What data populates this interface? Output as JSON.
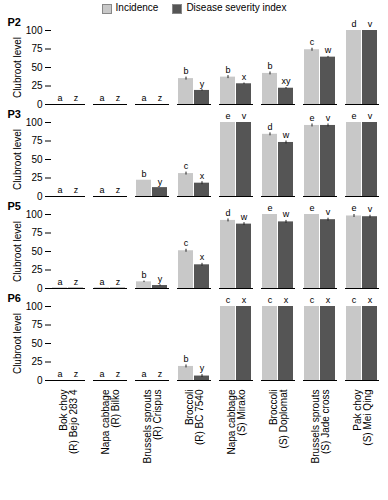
{
  "chart_data": [
    {
      "type": "bar",
      "title": "P2",
      "y_label": "Clubroot level",
      "categories": [
        "Bok choy",
        "Napa cabbage",
        "Brussels sprouts",
        "Broccoli",
        "Napa cabbage",
        "Broccoli",
        "Brussels sprouts",
        "Pak choy"
      ],
      "cultivars": [
        "(R) Bejo 283 4",
        "(R) Bilko",
        "(R) Crispus",
        "(R) BC 7540",
        "(S) Mirako",
        "(S) Doplomat",
        "(S) Jade cross",
        "(S) Mei Qing"
      ],
      "series": [
        {
          "name": "Incidence",
          "color": "#c8c8c8",
          "values": [
            0,
            0,
            0,
            35,
            37,
            42,
            74,
            100
          ],
          "errors": [
            0,
            0,
            0,
            2,
            2,
            2,
            2,
            0
          ],
          "letters": [
            "a",
            "a",
            "a",
            "b",
            "b",
            "b",
            "c",
            "d"
          ]
        },
        {
          "name": "Disease severity index",
          "color": "#555555",
          "values": [
            0,
            0,
            0,
            19,
            28,
            22,
            64,
            100
          ],
          "errors": [
            0,
            0,
            0,
            1,
            1,
            1,
            1,
            0
          ],
          "letters": [
            "z",
            "z",
            "z",
            "y",
            "x",
            "xy",
            "w",
            "v"
          ]
        }
      ],
      "ylim": [
        0,
        100
      ],
      "yticks": [
        0,
        25,
        50,
        75,
        100
      ],
      "legend": "top"
    },
    {
      "type": "bar",
      "title": "P3",
      "y_label": "Clubroot level",
      "categories": [
        "Bok choy",
        "Napa cabbage",
        "Brussels sprouts",
        "Broccoli",
        "Napa cabbage",
        "Broccoli",
        "Brussels sprouts",
        "Pak choy"
      ],
      "cultivars": [
        "(R) Bejo 283 4",
        "(R) Bilko",
        "(R) Crispus",
        "(R) BC 7540",
        "(S) Mirako",
        "(S) Doplomat",
        "(S) Jade cross",
        "(S) Mei Qing"
      ],
      "series": [
        {
          "name": "Incidence",
          "color": "#c8c8c8",
          "values": [
            0,
            0,
            22,
            31,
            100,
            84,
            96,
            100
          ],
          "errors": [
            0,
            0,
            0,
            2,
            0,
            2,
            2,
            0
          ],
          "letters": [
            "a",
            "a",
            "b",
            "c",
            "e",
            "d",
            "e",
            "e"
          ]
        },
        {
          "name": "Disease severity index",
          "color": "#555555",
          "values": [
            0,
            0,
            12,
            18,
            100,
            73,
            96,
            100
          ],
          "errors": [
            0,
            0,
            0,
            2,
            0,
            2,
            2,
            0
          ],
          "letters": [
            "z",
            "z",
            "y",
            "x",
            "v",
            "w",
            "v",
            "v"
          ]
        }
      ],
      "ylim": [
        0,
        100
      ],
      "yticks": [
        0,
        25,
        50,
        75,
        100
      ]
    },
    {
      "type": "bar",
      "title": "P5",
      "y_label": "Clubroot level",
      "categories": [
        "Bok choy",
        "Napa cabbage",
        "Brussels sprouts",
        "Broccoli",
        "Napa cabbage",
        "Broccoli",
        "Brussels sprouts",
        "Pak choy"
      ],
      "cultivars": [
        "(R) Bejo 283 4",
        "(R) Bilko",
        "(R) Crispus",
        "(R) BC 7540",
        "(S) Mirako",
        "(S) Doplomat",
        "(S) Jade cross",
        "(S) Mei Qing"
      ],
      "series": [
        {
          "name": "Incidence",
          "color": "#c8c8c8",
          "values": [
            1,
            1,
            9,
            51,
            92,
            100,
            100,
            98
          ],
          "errors": [
            0,
            0,
            1,
            2,
            2,
            0,
            0,
            2
          ],
          "letters": [
            "a",
            "a",
            "b",
            "c",
            "d",
            "e",
            "e",
            "e"
          ]
        },
        {
          "name": "Disease severity index",
          "color": "#555555",
          "values": [
            0.5,
            0.5,
            4,
            32,
            87,
            90,
            93,
            97
          ],
          "errors": [
            0,
            0,
            1,
            2,
            2,
            2,
            2,
            2
          ],
          "letters": [
            "z",
            "z",
            "y",
            "x",
            "w",
            "w",
            "v",
            "v"
          ]
        }
      ],
      "ylim": [
        0,
        100
      ],
      "yticks": [
        0,
        25,
        50,
        75,
        100
      ]
    },
    {
      "type": "bar",
      "title": "P6",
      "y_label": "Clubroot level",
      "categories": [
        "Bok choy",
        "Napa cabbage",
        "Brussels sprouts",
        "Broccoli",
        "Napa cabbage",
        "Broccoli",
        "Brussels sprouts",
        "Pak choy"
      ],
      "cultivars": [
        "(R) Bejo 283 4",
        "(R) Bilko",
        "(R) Crispus",
        "(R) BC 7540",
        "(S) Mirako",
        "(S) Doplomat",
        "(S) Jade cross",
        "(S) Mei Qing"
      ],
      "series": [
        {
          "name": "Incidence",
          "color": "#c8c8c8",
          "values": [
            0,
            0,
            0,
            19,
            100,
            100,
            100,
            100
          ],
          "errors": [
            0,
            0,
            0,
            2,
            0,
            0,
            0,
            0
          ],
          "letters": [
            "a",
            "a",
            "a",
            "b",
            "c",
            "c",
            "c",
            "c"
          ]
        },
        {
          "name": "Disease severity index",
          "color": "#555555",
          "values": [
            0,
            0,
            0,
            6,
            100,
            100,
            100,
            100
          ],
          "errors": [
            0,
            0,
            0,
            2,
            0,
            0,
            0,
            0
          ],
          "letters": [
            "z",
            "z",
            "z",
            "y",
            "x",
            "x",
            "x",
            "x"
          ]
        }
      ],
      "ylim": [
        0,
        100
      ],
      "yticks": [
        0,
        25,
        50,
        75,
        100
      ],
      "tick_labels": true
    }
  ]
}
